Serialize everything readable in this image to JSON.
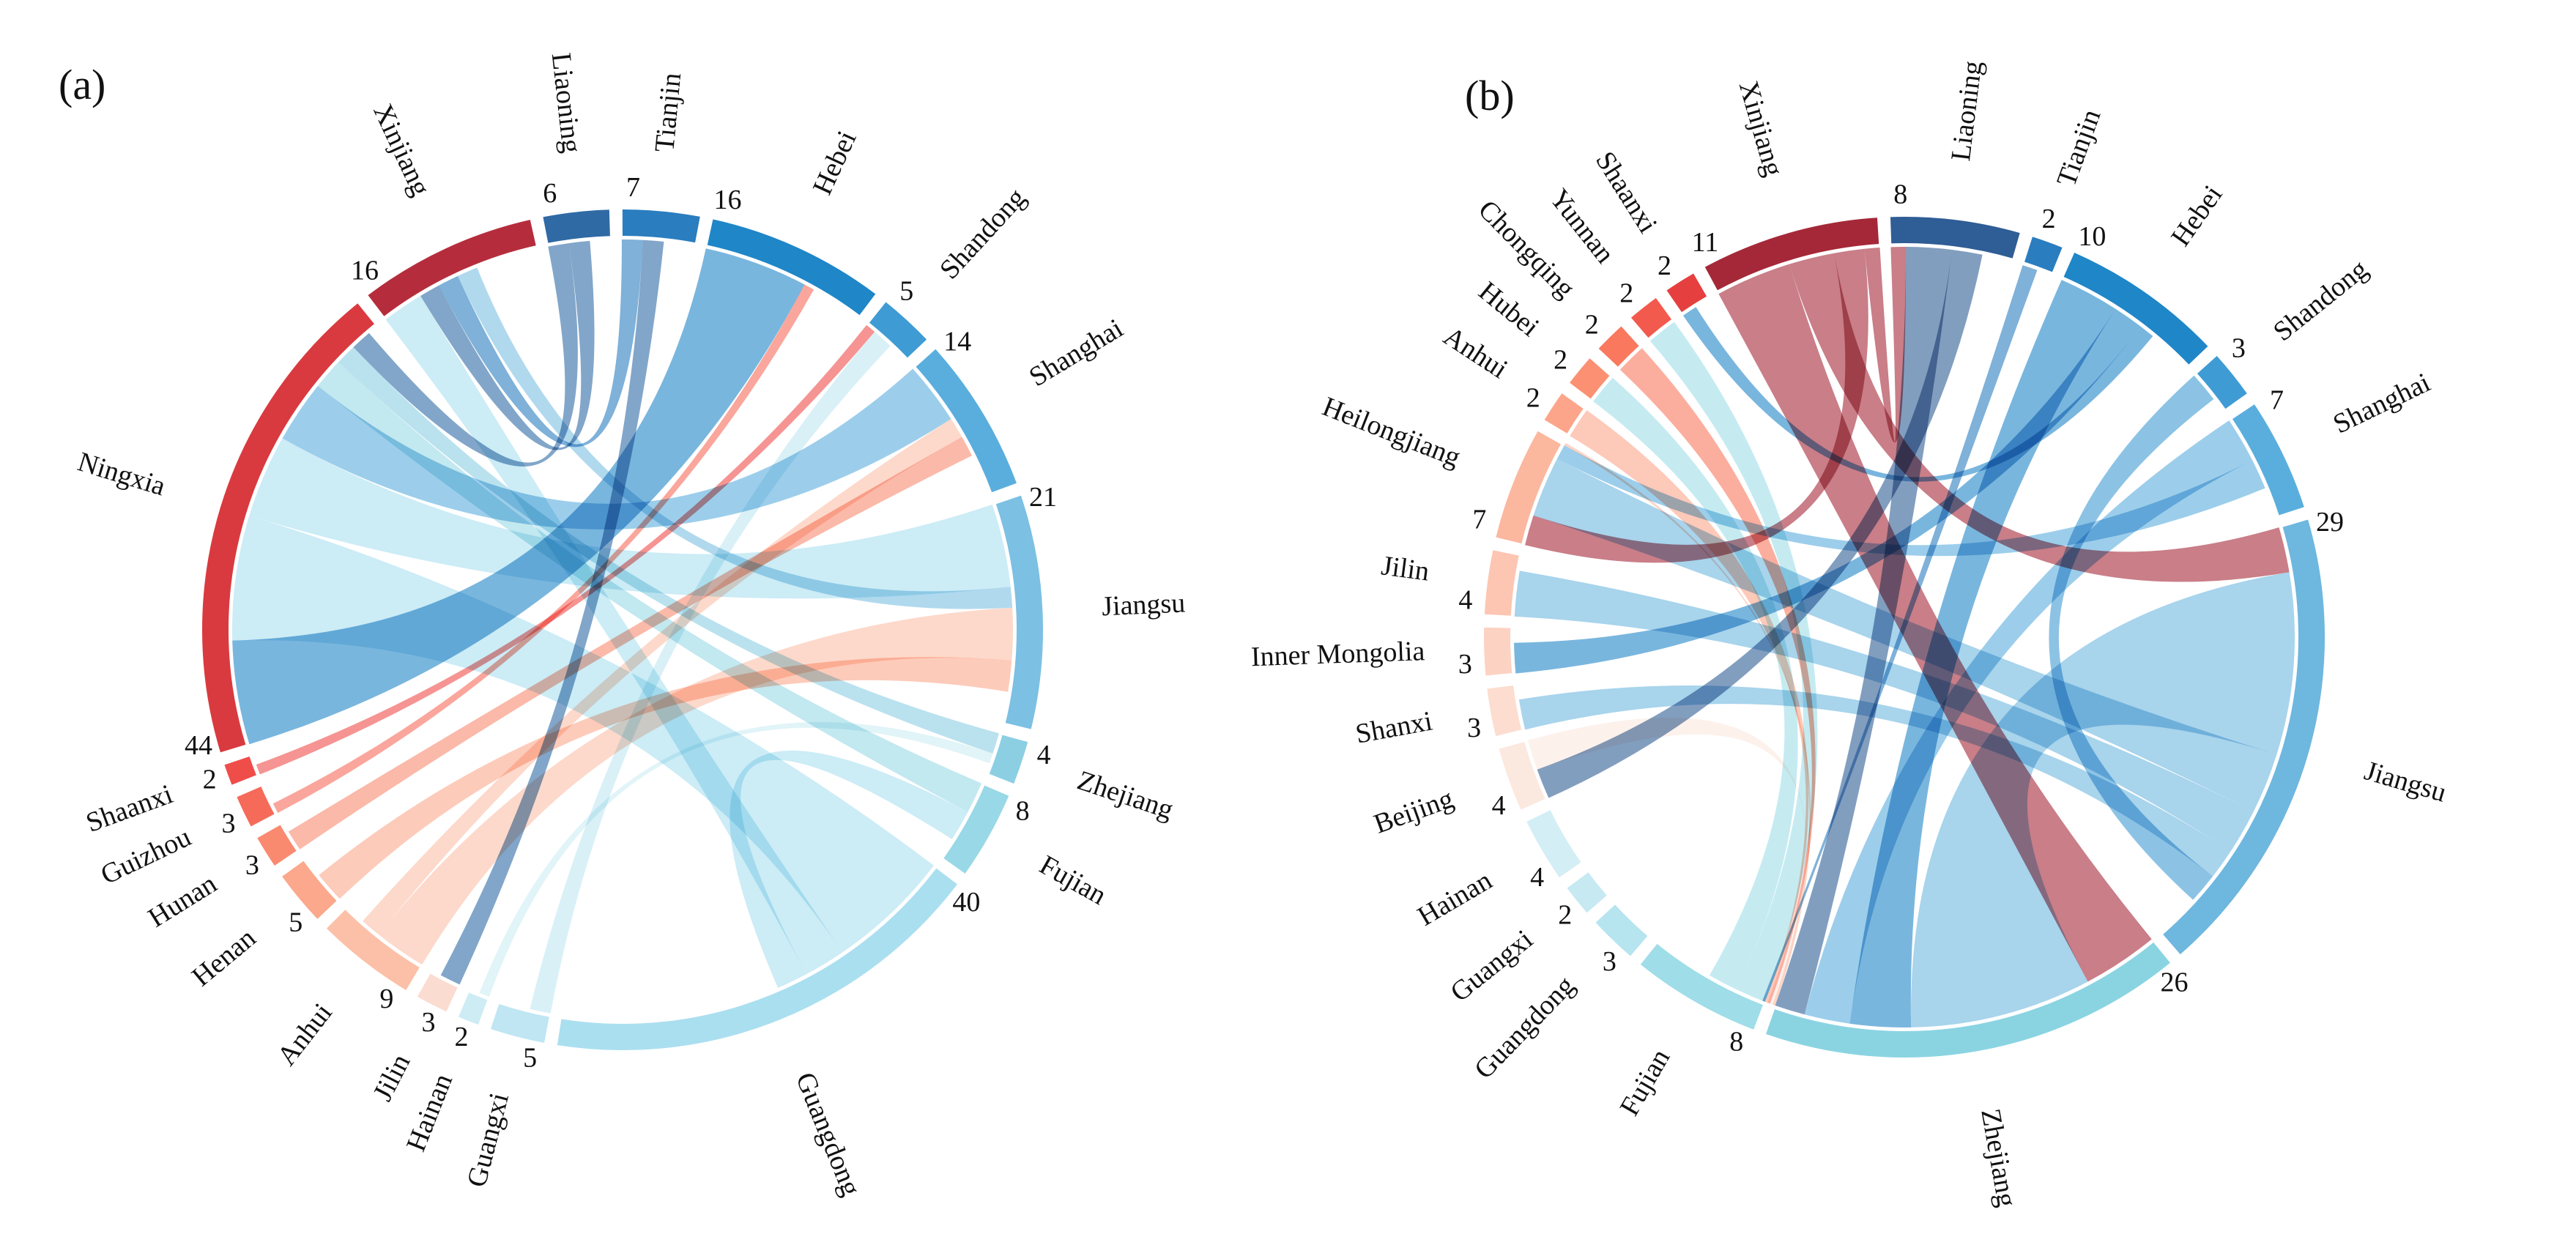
{
  "chart_data": [
    {
      "type": "chord",
      "panel": "(a)",
      "regions": [
        {
          "name": "Liaoning",
          "value": 6,
          "color": "#2f6aa5"
        },
        {
          "name": "Tianjin",
          "value": 7,
          "color": "#2a7dbf"
        },
        {
          "name": "Hebei",
          "value": 16,
          "color": "#1f86c8"
        },
        {
          "name": "Shandong",
          "value": 5,
          "color": "#3f9bd4"
        },
        {
          "name": "Shanghai",
          "value": 14,
          "color": "#5aaedd"
        },
        {
          "name": "Jiangsu",
          "value": 21,
          "color": "#7cc0e3"
        },
        {
          "name": "Zhejiang",
          "value": 4,
          "color": "#8ccfe3"
        },
        {
          "name": "Fujian",
          "value": 8,
          "color": "#99d8e6"
        },
        {
          "name": "Guangdong",
          "value": 40,
          "color": "#aadff0"
        },
        {
          "name": "Guangxi",
          "value": 5,
          "color": "#bfe6f2"
        },
        {
          "name": "Hainan",
          "value": 2,
          "color": "#cdecf4"
        },
        {
          "name": "Jilin",
          "value": 3,
          "color": "#fbdcd0"
        },
        {
          "name": "Anhui",
          "value": 9,
          "color": "#fcc0a8"
        },
        {
          "name": "Henan",
          "value": 5,
          "color": "#fba88c"
        },
        {
          "name": "Hunan",
          "value": 3,
          "color": "#f98a70"
        },
        {
          "name": "Guizhou",
          "value": 3,
          "color": "#f66a5a"
        },
        {
          "name": "Shaanxi",
          "value": 2,
          "color": "#ef4d4a"
        },
        {
          "name": "Ningxia",
          "value": 44,
          "color": "#d93a3f"
        },
        {
          "name": "Xinjiang",
          "value": 16,
          "color": "#b52d3c"
        }
      ],
      "links": [
        {
          "source": "Ningxia",
          "target": "Hebei",
          "weight": 10,
          "color": "#1f86c8"
        },
        {
          "source": "Ningxia",
          "target": "Guangdong",
          "weight": 12,
          "color": "#aadff0"
        },
        {
          "source": "Ningxia",
          "target": "Jiangsu",
          "weight": 8,
          "color": "#aadff0"
        },
        {
          "source": "Ningxia",
          "target": "Shanghai",
          "weight": 6,
          "color": "#5aaedd"
        },
        {
          "source": "Ningxia",
          "target": "Fujian",
          "weight": 3,
          "color": "#99d8e6"
        },
        {
          "source": "Ningxia",
          "target": "Zhejiang",
          "weight": 2,
          "color": "#8ccfe3"
        },
        {
          "source": "Ningxia",
          "target": "Liaoning",
          "weight": 2,
          "color": "#2f6aa5"
        },
        {
          "source": "Xinjiang",
          "target": "Guangdong",
          "weight": 4,
          "color": "#aadff0"
        },
        {
          "source": "Xinjiang",
          "target": "Liaoning",
          "weight": 2,
          "color": "#2f6aa5"
        },
        {
          "source": "Xinjiang",
          "target": "Tianjin",
          "weight": 2,
          "color": "#2a7dbf"
        },
        {
          "source": "Xinjiang",
          "target": "Jiangsu",
          "weight": 2,
          "color": "#7cc0e3"
        },
        {
          "source": "Anhui",
          "target": "Jiangsu",
          "weight": 5,
          "color": "#fcc0a8"
        },
        {
          "source": "Anhui",
          "target": "Shanghai",
          "weight": 2,
          "color": "#fcc0a8"
        },
        {
          "source": "Henan",
          "target": "Jiangsu",
          "weight": 3,
          "color": "#fba88c"
        },
        {
          "source": "Hunan",
          "target": "Shanghai",
          "weight": 2,
          "color": "#f98a70"
        },
        {
          "source": "Guizhou",
          "target": "Hebei",
          "weight": 1,
          "color": "#f66a5a"
        },
        {
          "source": "Shaanxi",
          "target": "Shandong",
          "weight": 1,
          "color": "#ef4d4a"
        },
        {
          "source": "Guangxi",
          "target": "Shandong",
          "weight": 2,
          "color": "#bfe6f2"
        },
        {
          "source": "Guangdong",
          "target": "Fujian",
          "weight": 3,
          "color": "#aadff0"
        },
        {
          "source": "Jilin",
          "target": "Tianjin",
          "weight": 2,
          "color": "#2f6aa5"
        },
        {
          "source": "Hainan",
          "target": "Zhejiang",
          "weight": 1,
          "color": "#cdecf4"
        }
      ]
    },
    {
      "type": "chord",
      "panel": "(b)",
      "regions": [
        {
          "name": "Liaoning",
          "value": 8,
          "color": "#2f5d95"
        },
        {
          "name": "Tianjin",
          "value": 2,
          "color": "#2a7dbf"
        },
        {
          "name": "Hebei",
          "value": 10,
          "color": "#1f86c8"
        },
        {
          "name": "Shandong",
          "value": 3,
          "color": "#3f9bd4"
        },
        {
          "name": "Shanghai",
          "value": 7,
          "color": "#5aaedd"
        },
        {
          "name": "Jiangsu",
          "value": 29,
          "color": "#6eb7df"
        },
        {
          "name": "Zhejiang",
          "value": 26,
          "color": "#8ad4e2"
        },
        {
          "name": "Fujian",
          "value": 8,
          "color": "#9fdde8"
        },
        {
          "name": "Guangdong",
          "value": 3,
          "color": "#b6e4ef"
        },
        {
          "name": "Guangxi",
          "value": 2,
          "color": "#c6e9f2"
        },
        {
          "name": "Hainan",
          "value": 4,
          "color": "#d4eef5"
        },
        {
          "name": "Beijing",
          "value": 4,
          "color": "#fbe8df"
        },
        {
          "name": "Shanxi",
          "value": 3,
          "color": "#fcddd0"
        },
        {
          "name": "Inner Mongolia",
          "value": 3,
          "color": "#fcd2c2"
        },
        {
          "name": "Jilin",
          "value": 4,
          "color": "#fcc6b2"
        },
        {
          "name": "Heilongjiang",
          "value": 7,
          "color": "#fcb79f"
        },
        {
          "name": "Anhui",
          "value": 2,
          "color": "#fca58a"
        },
        {
          "name": "Hubei",
          "value": 2,
          "color": "#fb9072"
        },
        {
          "name": "Chongqing",
          "value": 2,
          "color": "#f9785e"
        },
        {
          "name": "Yunnan",
          "value": 2,
          "color": "#f25a4d"
        },
        {
          "name": "Shaanxi",
          "value": 2,
          "color": "#e5403f"
        },
        {
          "name": "Xinjiang",
          "value": 11,
          "color": "#a52838"
        }
      ],
      "links": [
        {
          "source": "Xinjiang",
          "target": "Zhejiang",
          "weight": 5,
          "color": "#a52838"
        },
        {
          "source": "Xinjiang",
          "target": "Jiangsu",
          "weight": 3,
          "color": "#a52838"
        },
        {
          "source": "Xinjiang",
          "target": "Heilongjiang",
          "weight": 2,
          "color": "#a52838"
        },
        {
          "source": "Xinjiang",
          "target": "Liaoning",
          "weight": 1,
          "color": "#a52838"
        },
        {
          "source": "Jiangsu",
          "target": "Zhejiang",
          "weight": 12,
          "color": "#6eb7df"
        },
        {
          "source": "Jiangsu",
          "target": "Heilongjiang",
          "weight": 4,
          "color": "#6eb7df"
        },
        {
          "source": "Jiangsu",
          "target": "Jilin",
          "weight": 3,
          "color": "#6eb7df"
        },
        {
          "source": "Jiangsu",
          "target": "Shanxi",
          "weight": 2,
          "color": "#6eb7df"
        },
        {
          "source": "Hebei",
          "target": "Zhejiang",
          "weight": 4,
          "color": "#1f86c8"
        },
        {
          "source": "Hebei",
          "target": "Inner Mongolia",
          "weight": 2,
          "color": "#1f86c8"
        },
        {
          "source": "Hebei",
          "target": "Shaanxi",
          "weight": 1,
          "color": "#1f86c8"
        },
        {
          "source": "Shanghai",
          "target": "Zhejiang",
          "weight": 3,
          "color": "#5aaedd"
        },
        {
          "source": "Shanghai",
          "target": "Heilongjiang",
          "weight": 2,
          "color": "#5aaedd"
        },
        {
          "source": "Liaoning",
          "target": "Zhejiang",
          "weight": 3,
          "color": "#2f5d95"
        },
        {
          "source": "Liaoning",
          "target": "Beijing",
          "weight": 2,
          "color": "#2f5d95"
        },
        {
          "source": "Heilongjiang",
          "target": "Zhejiang",
          "weight": 3,
          "color": "#fcb79f"
        },
        {
          "source": "Beijing",
          "target": "Zhejiang",
          "weight": 2,
          "color": "#fbe8df"
        },
        {
          "source": "Fujian",
          "target": "Yunnan",
          "weight": 2,
          "color": "#9fdde8"
        },
        {
          "source": "Fujian",
          "target": "Hubei",
          "weight": 2,
          "color": "#9fdde8"
        },
        {
          "source": "Zhejiang",
          "target": "Chongqing",
          "weight": 2,
          "color": "#f9785e"
        },
        {
          "source": "Zhejiang",
          "target": "Anhui",
          "weight": 2,
          "color": "#fca58a"
        },
        {
          "source": "Tianjin",
          "target": "Zhejiang",
          "weight": 1,
          "color": "#2a7dbf"
        },
        {
          "source": "Shandong",
          "target": "Jiangsu",
          "weight": 2,
          "color": "#3f9bd4"
        }
      ]
    }
  ]
}
